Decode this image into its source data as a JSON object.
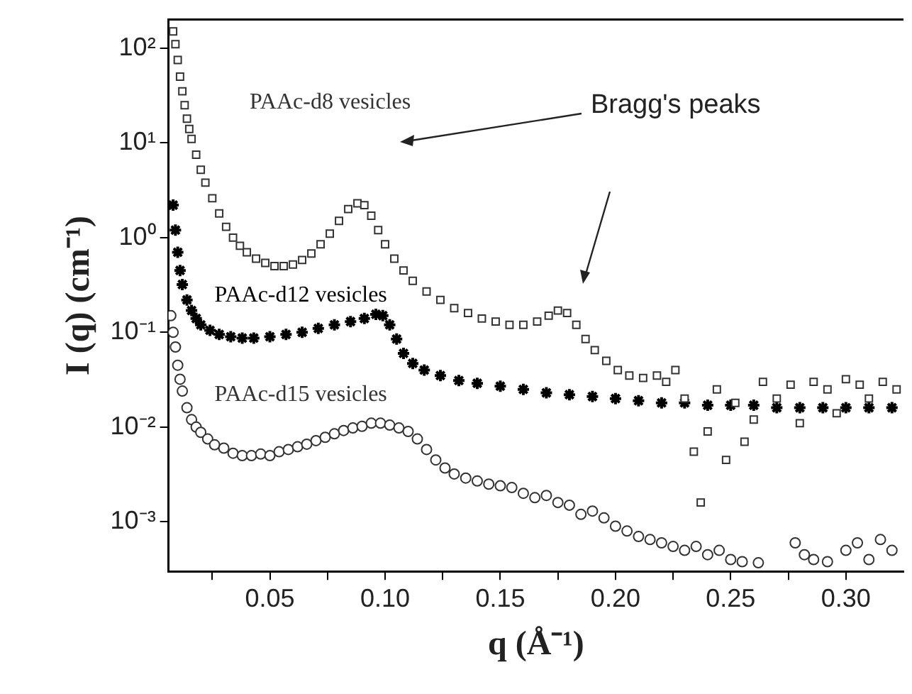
{
  "chart_data": {
    "type": "scatter",
    "xlabel": "q (Å⁻¹)",
    "ylabel": "I (q) (cm⁻¹)",
    "xlim": [
      0.006,
      0.325
    ],
    "ylim": [
      0.0003,
      200
    ],
    "log": "y",
    "grid": false,
    "legend": false,
    "xticks": [
      {
        "value": 0.025,
        "label": null
      },
      {
        "value": 0.05,
        "label": "0.05"
      },
      {
        "value": 0.075,
        "label": null
      },
      {
        "value": 0.1,
        "label": "0.10"
      },
      {
        "value": 0.125,
        "label": null
      },
      {
        "value": 0.15,
        "label": "0.15"
      },
      {
        "value": 0.175,
        "label": null
      },
      {
        "value": 0.2,
        "label": "0.20"
      },
      {
        "value": 0.225,
        "label": null
      },
      {
        "value": 0.25,
        "label": "0.25"
      },
      {
        "value": 0.275,
        "label": null
      },
      {
        "value": 0.3,
        "label": "0.30"
      }
    ],
    "yticks": [
      {
        "value": 100,
        "label": "10²"
      },
      {
        "value": 10,
        "label": "10¹"
      },
      {
        "value": 1,
        "label": "10⁰"
      },
      {
        "value": 0.1,
        "label": "10⁻¹"
      },
      {
        "value": 0.01,
        "label": "10⁻²"
      },
      {
        "value": 0.001,
        "label": "10⁻³"
      }
    ],
    "annotations": [
      "Bragg's peaks"
    ],
    "series": [
      {
        "name": "PAAc-d8 vesicles",
        "color": "#333333",
        "marker": "square",
        "x": [
          0.008,
          0.009,
          0.01,
          0.011,
          0.012,
          0.013,
          0.014,
          0.015,
          0.016,
          0.018,
          0.02,
          0.022,
          0.025,
          0.028,
          0.031,
          0.034,
          0.037,
          0.04,
          0.044,
          0.048,
          0.052,
          0.056,
          0.06,
          0.064,
          0.068,
          0.072,
          0.076,
          0.08,
          0.084,
          0.088,
          0.091,
          0.094,
          0.097,
          0.1,
          0.104,
          0.108,
          0.112,
          0.118,
          0.124,
          0.13,
          0.136,
          0.142,
          0.148,
          0.154,
          0.16,
          0.166,
          0.171,
          0.175,
          0.179,
          0.183,
          0.187,
          0.191,
          0.196,
          0.201,
          0.206,
          0.212,
          0.218,
          0.222,
          0.226,
          0.23,
          0.234,
          0.237,
          0.24,
          0.244,
          0.248,
          0.252,
          0.256,
          0.26,
          0.264,
          0.27,
          0.276,
          0.28,
          0.286,
          0.292,
          0.296,
          0.3,
          0.306,
          0.31,
          0.316,
          0.322
        ],
        "values": [
          150,
          110,
          75,
          50,
          35,
          25,
          18,
          14,
          11,
          7.5,
          5.2,
          3.8,
          2.6,
          1.8,
          1.3,
          1.0,
          0.82,
          0.7,
          0.6,
          0.54,
          0.5,
          0.5,
          0.52,
          0.58,
          0.68,
          0.85,
          1.1,
          1.5,
          2.0,
          2.3,
          2.2,
          1.7,
          1.2,
          0.85,
          0.6,
          0.45,
          0.35,
          0.27,
          0.22,
          0.18,
          0.16,
          0.14,
          0.13,
          0.12,
          0.12,
          0.13,
          0.15,
          0.17,
          0.16,
          0.12,
          0.085,
          0.065,
          0.05,
          0.04,
          0.035,
          0.033,
          0.035,
          0.03,
          0.04,
          0.02,
          0.0055,
          0.0016,
          0.009,
          0.025,
          0.0045,
          0.018,
          0.007,
          0.012,
          0.03,
          0.02,
          0.028,
          0.011,
          0.03,
          0.025,
          0.014,
          0.032,
          0.028,
          0.02,
          0.03,
          0.025
        ]
      },
      {
        "name": "PAAc-d12 vesicles",
        "color": "#000000",
        "marker": "cross",
        "x": [
          0.008,
          0.009,
          0.01,
          0.011,
          0.012,
          0.014,
          0.016,
          0.018,
          0.02,
          0.024,
          0.028,
          0.033,
          0.038,
          0.043,
          0.05,
          0.057,
          0.064,
          0.071,
          0.078,
          0.085,
          0.091,
          0.096,
          0.099,
          0.102,
          0.105,
          0.108,
          0.112,
          0.117,
          0.124,
          0.132,
          0.14,
          0.15,
          0.16,
          0.17,
          0.18,
          0.19,
          0.2,
          0.21,
          0.22,
          0.23,
          0.24,
          0.25,
          0.26,
          0.27,
          0.28,
          0.29,
          0.3,
          0.31,
          0.32
        ],
        "values": [
          2.2,
          1.2,
          0.7,
          0.45,
          0.32,
          0.22,
          0.17,
          0.14,
          0.12,
          0.105,
          0.095,
          0.09,
          0.087,
          0.087,
          0.09,
          0.095,
          0.1,
          0.11,
          0.12,
          0.13,
          0.14,
          0.155,
          0.15,
          0.12,
          0.085,
          0.06,
          0.047,
          0.04,
          0.035,
          0.031,
          0.029,
          0.027,
          0.025,
          0.023,
          0.022,
          0.021,
          0.02,
          0.019,
          0.018,
          0.018,
          0.017,
          0.017,
          0.017,
          0.016,
          0.016,
          0.016,
          0.016,
          0.016,
          0.016
        ]
      },
      {
        "name": "PAAc-d15 vesicles",
        "color": "#333333",
        "marker": "circle",
        "x": [
          0.007,
          0.008,
          0.009,
          0.01,
          0.011,
          0.012,
          0.014,
          0.016,
          0.018,
          0.02,
          0.023,
          0.026,
          0.03,
          0.034,
          0.038,
          0.042,
          0.046,
          0.05,
          0.054,
          0.058,
          0.062,
          0.066,
          0.07,
          0.074,
          0.078,
          0.082,
          0.086,
          0.09,
          0.094,
          0.098,
          0.102,
          0.106,
          0.11,
          0.114,
          0.118,
          0.122,
          0.126,
          0.13,
          0.135,
          0.14,
          0.145,
          0.15,
          0.155,
          0.16,
          0.165,
          0.17,
          0.175,
          0.18,
          0.185,
          0.19,
          0.195,
          0.2,
          0.205,
          0.21,
          0.215,
          0.22,
          0.225,
          0.23,
          0.235,
          0.24,
          0.245,
          0.25,
          0.255,
          0.262,
          0.278,
          0.282,
          0.286,
          0.292,
          0.3,
          0.305,
          0.31,
          0.315,
          0.32
        ],
        "values": [
          0.15,
          0.1,
          0.07,
          0.045,
          0.032,
          0.024,
          0.016,
          0.012,
          0.01,
          0.0088,
          0.0075,
          0.0065,
          0.006,
          0.0053,
          0.005,
          0.005,
          0.0052,
          0.005,
          0.0055,
          0.0058,
          0.0062,
          0.0066,
          0.0072,
          0.0078,
          0.0085,
          0.0092,
          0.0098,
          0.0102,
          0.011,
          0.011,
          0.0105,
          0.0098,
          0.009,
          0.0075,
          0.0058,
          0.0045,
          0.0037,
          0.0032,
          0.0029,
          0.0027,
          0.0025,
          0.0024,
          0.0023,
          0.002,
          0.0018,
          0.0019,
          0.0016,
          0.0015,
          0.0012,
          0.0013,
          0.0011,
          0.0009,
          0.0008,
          0.0007,
          0.00065,
          0.0006,
          0.00055,
          0.0005,
          0.00055,
          0.00045,
          0.0005,
          0.0004,
          0.00038,
          0.00037,
          0.0006,
          0.00045,
          0.0004,
          0.00038,
          0.0005,
          0.0006,
          0.0004,
          0.00065,
          0.0005
        ]
      }
    ]
  }
}
